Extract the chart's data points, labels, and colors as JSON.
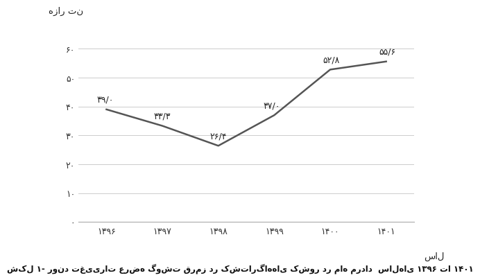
{
  "years": [
    "۱۳۹۶",
    "۱۳۹۷",
    "۱۳۹۸",
    "۱۳۹۹",
    "۱۴۰۰",
    "۱۴۰۱"
  ],
  "values": [
    39.0,
    33.3,
    26.4,
    37.0,
    52.8,
    55.6
  ],
  "labels": [
    "۳۹/۰",
    "۳۳/۳",
    "۲۶/۴",
    "۳۷/۰",
    "۵۲/۸",
    "۵۵/۶"
  ],
  "yticks": [
    0,
    10,
    20,
    30,
    40,
    50,
    60
  ],
  "ytick_labels": [
    "۰",
    "۱۰",
    "۲۰",
    "۳۰",
    "۴۰",
    "۵۰",
    "۶۰"
  ],
  "ylabel_top": "هزار تن",
  "xlabel_right": "سال",
  "line_color": "#555555",
  "line_width": 1.8,
  "caption": "شکل ۱- روند تغییرات عرضه گوشت قرمز در کشتارگاه‌های کشور در ماه مرداد  سال‌های ۱۳۹۶ تا ۱۴۰۱",
  "bg_color": "#ffffff",
  "grid_color": "#cccccc"
}
